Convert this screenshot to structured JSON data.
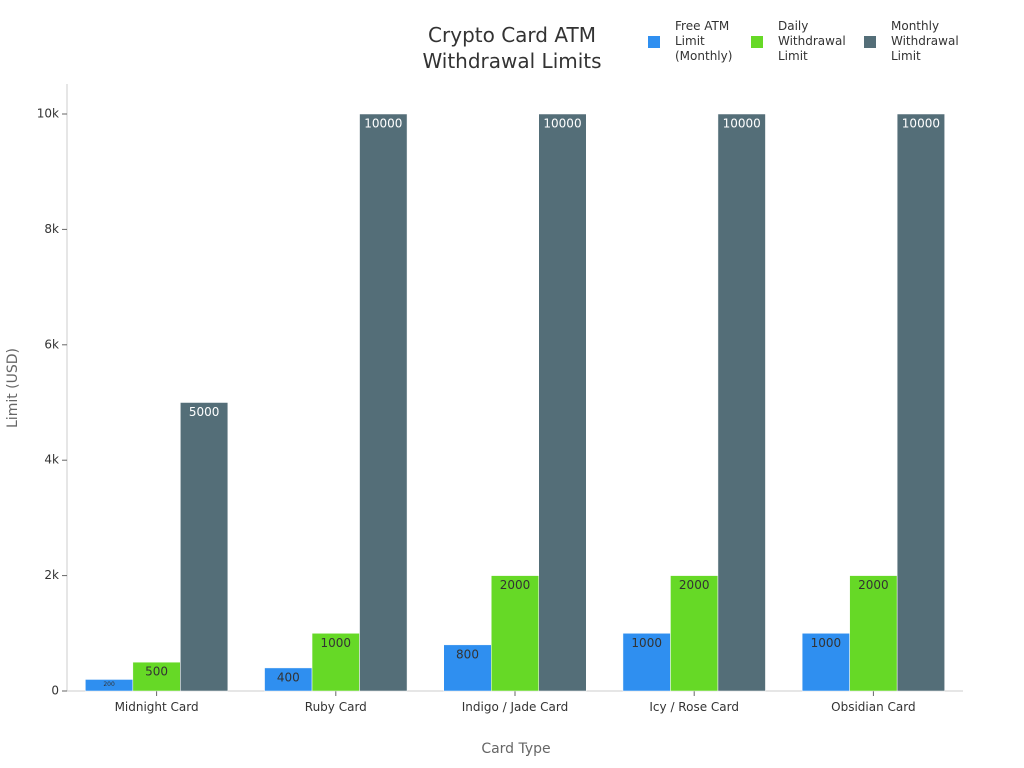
{
  "chart_data": {
    "type": "bar",
    "title": "Crypto Card ATM Withdrawal Limits",
    "x_label": "Card Type",
    "y_label": "Limit (USD)",
    "categories": [
      "Midnight Card",
      "Ruby Card",
      "Indigo / Jade Card",
      "Icy / Rose Card",
      "Obsidian Card"
    ],
    "series": [
      {
        "name": "Free ATM Limit (Monthly)",
        "color": "#2f8ff0",
        "values": [
          200,
          400,
          800,
          1000,
          1000
        ]
      },
      {
        "name": "Daily Withdrawal Limit",
        "color": "#66d926",
        "values": [
          500,
          1000,
          2000,
          2000,
          2000
        ]
      },
      {
        "name": "Monthly Withdrawal Limit",
        "color": "#546e78",
        "values": [
          5000,
          10000,
          10000,
          10000,
          10000
        ]
      }
    ],
    "ylim": [
      0,
      10000
    ],
    "yticks": [
      0,
      {
        "value": 2000,
        "label": "2k"
      },
      {
        "value": 4000,
        "label": "4k"
      },
      {
        "value": 6000,
        "label": "6k"
      },
      {
        "value": 8000,
        "label": "8k"
      },
      {
        "value": 10000,
        "label": "10k"
      }
    ],
    "legend": "top-right"
  }
}
